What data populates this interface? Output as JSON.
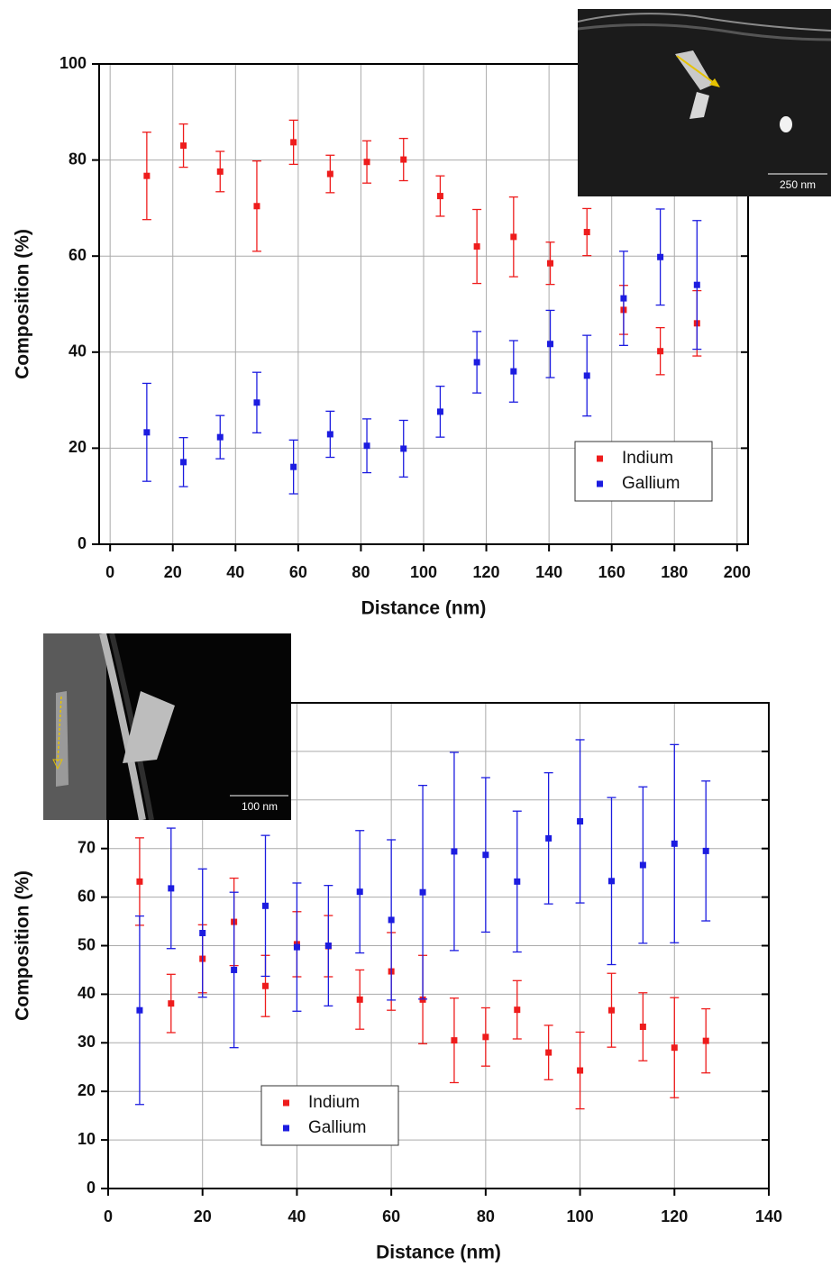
{
  "chart_data": [
    {
      "type": "scatter",
      "x_label": "Distance (nm)",
      "y_label": "Composition (%)",
      "inset_label": "250 nm",
      "x": [
        11.7,
        23.4,
        35.1,
        46.8,
        58.5,
        70.2,
        81.9,
        93.6,
        105.3,
        117,
        128.7,
        140.4,
        152.1,
        163.8,
        175.5,
        187.2
      ],
      "series": [
        {
          "name": "Indium",
          "color": "#ee1c1c",
          "values": [
            76.7,
            83.0,
            77.6,
            70.4,
            83.7,
            77.1,
            79.6,
            80.1,
            72.5,
            62.0,
            64.0,
            58.5,
            65.0,
            48.8,
            40.2,
            46.0
          ],
          "errors": [
            9.1,
            4.5,
            4.2,
            9.4,
            4.6,
            3.9,
            4.4,
            4.4,
            4.2,
            7.7,
            8.3,
            4.4,
            4.9,
            5.1,
            4.9,
            6.8
          ]
        },
        {
          "name": "Gallium",
          "color": "#1c1ce0",
          "values": [
            23.3,
            17.1,
            22.3,
            29.5,
            16.1,
            22.9,
            20.5,
            19.9,
            27.6,
            37.9,
            36.0,
            41.7,
            35.1,
            51.2,
            59.8,
            54.0
          ],
          "errors": [
            10.2,
            5.1,
            4.5,
            6.3,
            5.6,
            4.8,
            5.6,
            5.9,
            5.3,
            6.4,
            6.4,
            7.0,
            8.4,
            9.8,
            10.0,
            13.4
          ]
        }
      ],
      "xlim": [
        -3.5,
        203.5
      ],
      "ylim": [
        0,
        100
      ],
      "xticks": [
        0,
        20,
        40,
        60,
        80,
        100,
        120,
        140,
        160,
        180,
        200
      ],
      "yticks": [
        0,
        20,
        40,
        60,
        80,
        100
      ],
      "grid": true,
      "legend": "lower right"
    },
    {
      "type": "scatter",
      "x_label": "Distance (nm)",
      "y_label": "Composition (%)",
      "inset_label": "100 nm",
      "x": [
        6.67,
        13.33,
        20,
        26.67,
        33.33,
        40,
        46.67,
        53.33,
        60,
        66.67,
        73.33,
        80,
        86.67,
        93.33,
        100,
        106.67,
        113.33,
        120,
        126.67
      ],
      "series": [
        {
          "name": "Indium",
          "color": "#ee1c1c",
          "values": [
            63.2,
            38.1,
            47.3,
            54.9,
            41.7,
            50.3,
            49.9,
            38.9,
            44.7,
            38.9,
            30.5,
            31.2,
            36.8,
            28.0,
            24.3,
            36.7,
            33.3,
            29.0,
            30.4
          ],
          "errors": [
            9.0,
            6.0,
            7.0,
            9.0,
            6.3,
            6.7,
            6.3,
            6.1,
            8.0,
            9.1,
            8.7,
            6.0,
            6.0,
            5.6,
            7.9,
            7.6,
            7.0,
            10.3,
            6.6
          ]
        },
        {
          "name": "Gallium",
          "color": "#1c1ce0",
          "values": [
            36.7,
            61.8,
            52.6,
            45.0,
            58.2,
            49.7,
            50.0,
            61.1,
            55.3,
            61.0,
            69.4,
            68.7,
            63.2,
            72.1,
            75.6,
            63.3,
            66.6,
            71.0,
            69.5
          ],
          "errors": [
            19.4,
            12.4,
            13.2,
            16.0,
            14.5,
            13.2,
            12.4,
            12.6,
            16.5,
            22.0,
            20.4,
            15.9,
            14.5,
            13.5,
            16.8,
            17.2,
            16.1,
            20.4,
            14.4
          ]
        }
      ],
      "xlim": [
        0,
        140
      ],
      "ylim": [
        0,
        100
      ],
      "xticks": [
        0,
        20,
        40,
        60,
        80,
        100,
        120,
        140
      ],
      "yticks": [
        0,
        10,
        20,
        30,
        40,
        50,
        60,
        70,
        80,
        90,
        100
      ],
      "grid": true,
      "legend": "lower left"
    }
  ]
}
